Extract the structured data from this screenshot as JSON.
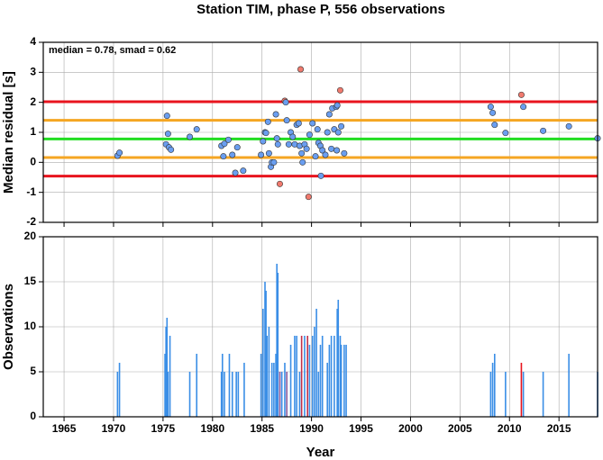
{
  "chart_data": [
    {
      "type": "scatter",
      "title": "Station TIM, phase P, 556 observations",
      "ylabel": "Median residual [s]",
      "annotation": "median = 0.78, smad = 0.62",
      "xlim": [
        1962.9,
        2018.9
      ],
      "xticks": [
        1965,
        1970,
        1975,
        1980,
        1985,
        1990,
        1995,
        2000,
        2005,
        2010,
        2015
      ],
      "xtick_labels": false,
      "ylim": [
        -2,
        4
      ],
      "yticks": [
        -2,
        -1,
        0,
        1,
        2,
        3,
        4
      ],
      "grid": true,
      "reference_lines": [
        {
          "value": 2.02,
          "color": "#e8141e"
        },
        {
          "value": 1.4,
          "color": "#f5a623"
        },
        {
          "value": 0.78,
          "color": "#22dd22"
        },
        {
          "value": 0.16,
          "color": "#f5a623"
        },
        {
          "value": -0.46,
          "color": "#e8141e"
        }
      ],
      "x": [
        1970.4,
        1970.6,
        1975.4,
        1975.3,
        1975.5,
        1975.6,
        1975.8,
        1977.7,
        1978.4,
        1980.9,
        1981.1,
        1981.2,
        1981.6,
        1982.0,
        1982.3,
        1982.5,
        1983.1,
        1984.9,
        1985.1,
        1985.3,
        1985.4,
        1985.6,
        1985.7,
        1985.9,
        1986.0,
        1986.2,
        1986.4,
        1986.5,
        1986.6,
        1986.8,
        1987.3,
        1987.4,
        1987.5,
        1987.7,
        1987.9,
        1988.1,
        1988.3,
        1988.5,
        1988.7,
        1988.8,
        1988.9,
        1989.0,
        1989.1,
        1989.3,
        1989.5,
        1989.7,
        1989.8,
        1990.1,
        1990.4,
        1990.6,
        1990.7,
        1990.9,
        1990.95,
        1991.1,
        1991.4,
        1991.6,
        1991.8,
        1992.0,
        1992.1,
        1992.3,
        1992.5,
        1992.55,
        1992.6,
        1992.7,
        1992.9,
        1993.0,
        1993.3,
        2008.1,
        2008.3,
        2008.5,
        2009.6,
        2011.2,
        2011.4,
        2013.4,
        2016.0,
        2018.9
      ],
      "values": [
        0.22,
        0.32,
        1.55,
        0.6,
        0.95,
        0.5,
        0.42,
        0.85,
        1.1,
        0.55,
        0.2,
        0.62,
        0.75,
        0.25,
        -0.35,
        0.5,
        -0.28,
        0.25,
        0.7,
        1.0,
        0.98,
        1.35,
        0.3,
        -0.15,
        0.0,
        0.0,
        1.6,
        0.8,
        0.6,
        -0.72,
        2.05,
        2.0,
        1.4,
        0.6,
        1.0,
        0.85,
        0.6,
        1.25,
        1.3,
        0.55,
        3.1,
        0.3,
        0.0,
        0.6,
        0.45,
        -1.15,
        0.92,
        1.3,
        0.2,
        1.1,
        0.65,
        0.55,
        -0.45,
        0.4,
        0.25,
        1.0,
        1.6,
        0.45,
        1.8,
        1.1,
        1.85,
        0.4,
        1.9,
        1.0,
        2.4,
        1.2,
        0.3,
        1.85,
        1.65,
        1.25,
        0.98,
        2.25,
        1.85,
        1.05,
        1.2,
        0.8
      ],
      "colors": [
        "#6a9ef0",
        "#6a9ef0",
        "#6a9ef0",
        "#6a9ef0",
        "#6a9ef0",
        "#6a9ef0",
        "#6a9ef0",
        "#6a9ef0",
        "#6a9ef0",
        "#6a9ef0",
        "#6a9ef0",
        "#6a9ef0",
        "#6a9ef0",
        "#6a9ef0",
        "#6a9ef0",
        "#6a9ef0",
        "#6a9ef0",
        "#6a9ef0",
        "#6a9ef0",
        "#6a9ef0",
        "#6a9ef0",
        "#6a9ef0",
        "#6a9ef0",
        "#6a9ef0",
        "#6a9ef0",
        "#6a9ef0",
        "#6a9ef0",
        "#6a9ef0",
        "#6a9ef0",
        "#f07a6e",
        "#f07a6e",
        "#6a9ef0",
        "#6a9ef0",
        "#6a9ef0",
        "#6a9ef0",
        "#6a9ef0",
        "#6a9ef0",
        "#6a9ef0",
        "#6a9ef0",
        "#6a9ef0",
        "#f07a6e",
        "#6a9ef0",
        "#6a9ef0",
        "#6a9ef0",
        "#6a9ef0",
        "#f07a6e",
        "#6a9ef0",
        "#6a9ef0",
        "#6a9ef0",
        "#6a9ef0",
        "#6a9ef0",
        "#6a9ef0",
        "#6a9ef0",
        "#6a9ef0",
        "#6a9ef0",
        "#6a9ef0",
        "#6a9ef0",
        "#6a9ef0",
        "#6a9ef0",
        "#6a9ef0",
        "#6a9ef0",
        "#6a9ef0",
        "#6a9ef0",
        "#6a9ef0",
        "#f07a6e",
        "#6a9ef0",
        "#6a9ef0",
        "#6a9ef0",
        "#6a9ef0",
        "#6a9ef0",
        "#6a9ef0",
        "#f07a6e",
        "#6a9ef0",
        "#6a9ef0",
        "#6a9ef0",
        "#6a9ef0"
      ]
    },
    {
      "type": "bar",
      "ylabel": "Observations",
      "xlabel": "Year",
      "xlim": [
        1962.9,
        2018.9
      ],
      "xticks": [
        1965,
        1970,
        1975,
        1980,
        1985,
        1990,
        1995,
        2000,
        2005,
        2010,
        2015
      ],
      "xtick_labels": true,
      "ylim": [
        0,
        20
      ],
      "yticks": [
        0,
        5,
        10,
        15,
        20
      ],
      "grid": true,
      "x": [
        1970.4,
        1970.6,
        1975.2,
        1975.3,
        1975.4,
        1975.5,
        1975.7,
        1977.7,
        1978.4,
        1980.9,
        1981.0,
        1981.2,
        1981.7,
        1982.0,
        1982.4,
        1982.6,
        1983.2,
        1984.9,
        1985.1,
        1985.3,
        1985.4,
        1985.5,
        1985.7,
        1986.0,
        1986.2,
        1986.4,
        1986.5,
        1986.6,
        1986.8,
        1987.0,
        1987.3,
        1987.5,
        1987.9,
        1988.3,
        1988.5,
        1988.8,
        1989.0,
        1989.3,
        1989.6,
        1989.8,
        1990.1,
        1990.3,
        1990.5,
        1990.7,
        1990.9,
        1991.1,
        1991.6,
        1991.8,
        1992.0,
        1992.3,
        1992.6,
        1992.7,
        1992.9,
        1993.0,
        1993.3,
        1993.5,
        2008.1,
        2008.3,
        2008.5,
        2009.6,
        2011.2,
        2011.4,
        2013.4,
        2016.0,
        2018.9
      ],
      "values": [
        5,
        6,
        7,
        10,
        11,
        5,
        9,
        5,
        7,
        5,
        7,
        5,
        7,
        5,
        5,
        5,
        6,
        7,
        12,
        15,
        14,
        9,
        10,
        6,
        6,
        7,
        17,
        16,
        5,
        5,
        6,
        5,
        8,
        9,
        9,
        5,
        9,
        9,
        9,
        8,
        9,
        10,
        12,
        5,
        8,
        9,
        6,
        8,
        9,
        9,
        12,
        13,
        9,
        8,
        8,
        8,
        5,
        6,
        7,
        5,
        6,
        5,
        5,
        7,
        5
      ],
      "colors": [
        "#3a8ee6",
        "#3a8ee6",
        "#3a8ee6",
        "#3a8ee6",
        "#3a8ee6",
        "#3a8ee6",
        "#3a8ee6",
        "#3a8ee6",
        "#3a8ee6",
        "#3a8ee6",
        "#3a8ee6",
        "#3a8ee6",
        "#3a8ee6",
        "#3a8ee6",
        "#3a8ee6",
        "#3a8ee6",
        "#3a8ee6",
        "#3a8ee6",
        "#3a8ee6",
        "#3a8ee6",
        "#3a8ee6",
        "#3a8ee6",
        "#3a8ee6",
        "#3a8ee6",
        "#3a8ee6",
        "#3a8ee6",
        "#3a8ee6",
        "#3a8ee6",
        "#8a5a9a",
        "#3a8ee6",
        "#3a8ee6",
        "#8a5a9a",
        "#3a8ee6",
        "#3a8ee6",
        "#3a8ee6",
        "#3a8ee6",
        "#c0304a",
        "#3a8ee6",
        "#c0304a",
        "#3a8ee6",
        "#3a8ee6",
        "#3a8ee6",
        "#3a8ee6",
        "#3a8ee6",
        "#3a8ee6",
        "#3a8ee6",
        "#3a8ee6",
        "#3a8ee6",
        "#3a8ee6",
        "#3a8ee6",
        "#3a8ee6",
        "#3a8ee6",
        "#3a8ee6",
        "#3a8ee6",
        "#3a8ee6",
        "#3a8ee6",
        "#3a8ee6",
        "#3a8ee6",
        "#3a8ee6",
        "#3a8ee6",
        "#e8141e",
        "#3a8ee6",
        "#3a8ee6",
        "#3a8ee6",
        "#3a8ee6"
      ]
    }
  ]
}
